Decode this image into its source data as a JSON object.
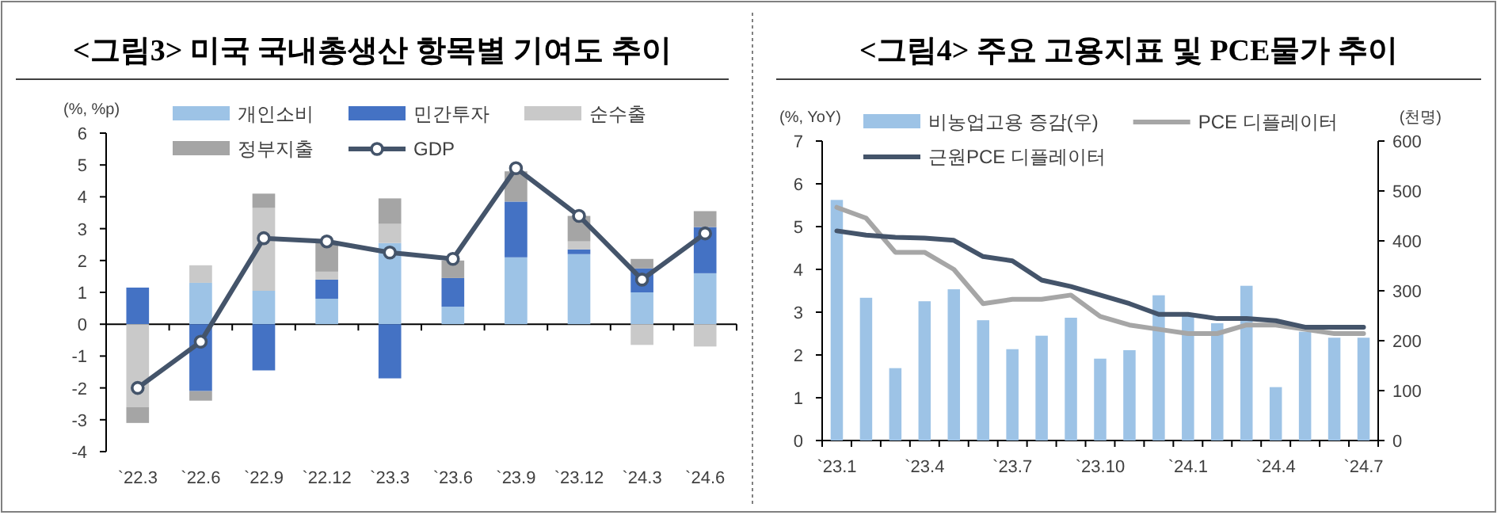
{
  "chart_data": [
    {
      "type": "bar",
      "title": "<그림3> 미국 국내총생산 항목별 기여도 추이",
      "ylabel": "(%, %p)",
      "stacked": true,
      "legend": "top",
      "ylim": [
        -4,
        6
      ],
      "yticks": [
        -4,
        -3,
        -2,
        -1,
        0,
        1,
        2,
        3,
        4,
        5,
        6
      ],
      "categories": [
        "`22.3",
        "`22.6",
        "`22.9",
        "`22.12",
        "`23.3",
        "`23.6",
        "`23.9",
        "`23.12",
        "`24.3",
        "`24.6"
      ],
      "series": [
        {
          "name": "개인소비",
          "color": "#9dc3e6",
          "values": [
            0,
            1.3,
            1.05,
            0.8,
            2.55,
            0.55,
            2.1,
            2.2,
            1.0,
            1.6
          ]
        },
        {
          "name": "민간투자",
          "color": "#4472c4",
          "values": [
            1.15,
            -2.1,
            -1.45,
            0.6,
            -1.7,
            0.9,
            1.75,
            0.15,
            0.75,
            1.45
          ]
        },
        {
          "name": "순수출",
          "color": "#c9c9c9",
          "values": [
            -2.6,
            0.55,
            2.6,
            0.25,
            0.6,
            null,
            null,
            0.25,
            -0.65,
            -0.7
          ]
        },
        {
          "name": "정부지출",
          "color": "#a5a5a5",
          "values": [
            -0.5,
            -0.3,
            0.45,
            0.9,
            0.8,
            0.55,
            0.95,
            0.8,
            0.3,
            0.5
          ]
        },
        {
          "name": "GDP",
          "type": "line",
          "marker": "circle",
          "color": "#44546a",
          "values": [
            -2.0,
            -0.55,
            2.7,
            2.6,
            2.25,
            2.05,
            4.9,
            3.4,
            1.4,
            2.85
          ]
        }
      ]
    },
    {
      "type": "bar",
      "title": "<그림4> 주요 고용지표 및 PCE물가 추이",
      "ylabel": "(%, YoY)",
      "y2label": "(천명)",
      "legend": "top",
      "ylim": [
        0,
        7
      ],
      "yticks": [
        0,
        1,
        2,
        3,
        4,
        5,
        6,
        7
      ],
      "y2lim": [
        0,
        600
      ],
      "y2ticks": [
        0,
        100,
        200,
        300,
        400,
        500,
        600
      ],
      "categories": [
        "`23.1",
        null,
        null,
        "`23.4",
        null,
        null,
        "`23.7",
        null,
        null,
        "`23.10",
        null,
        null,
        "`24.1",
        null,
        null,
        "`24.4",
        null,
        null,
        "`24.7"
      ],
      "series": [
        {
          "name": "비농업고용 증감(우)",
          "axis": "y2",
          "color": "#9dc3e6",
          "values": [
            482,
            286,
            145,
            279,
            303,
            241,
            183,
            210,
            246,
            164,
            181,
            291,
            252,
            235,
            310,
            107,
            218,
            206,
            206
          ]
        },
        {
          "name": "PCE 디플레이터",
          "type": "line",
          "color": "#a6a6a6",
          "values": [
            5.45,
            5.2,
            4.4,
            4.4,
            4.0,
            3.2,
            3.3,
            3.3,
            3.4,
            2.9,
            2.7,
            2.6,
            2.5,
            2.5,
            2.7,
            2.7,
            2.6,
            2.5,
            2.5
          ]
        },
        {
          "name": "근원PCE 디플레이터",
          "type": "line",
          "color": "#44546a",
          "values": [
            4.9,
            4.8,
            4.75,
            4.73,
            4.68,
            4.3,
            4.2,
            3.75,
            3.6,
            3.4,
            3.2,
            2.95,
            2.95,
            2.85,
            2.85,
            2.8,
            2.65,
            2.65,
            2.65
          ]
        }
      ]
    }
  ]
}
